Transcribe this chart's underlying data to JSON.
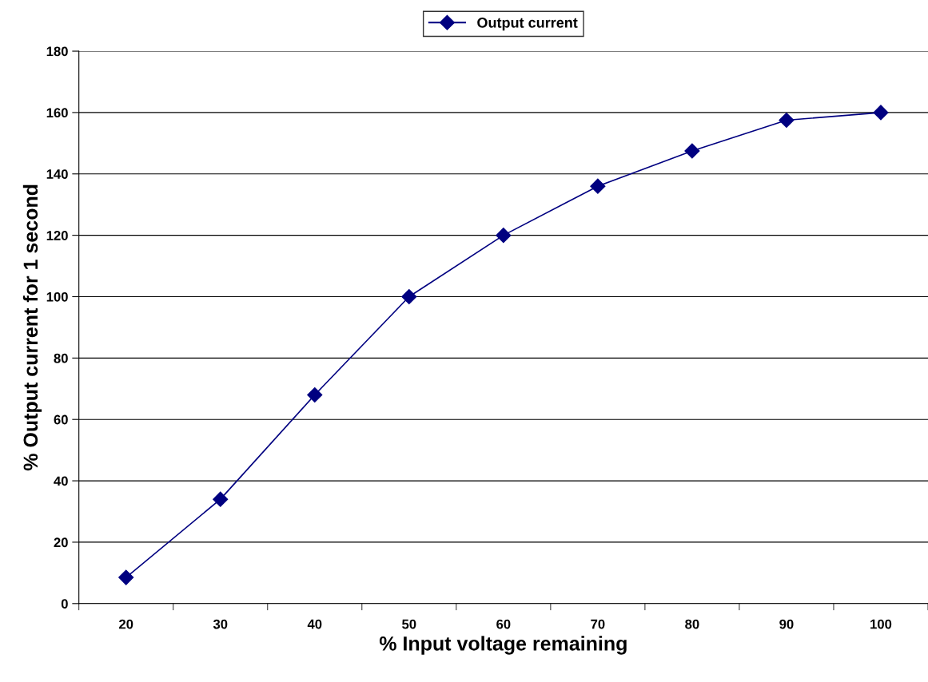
{
  "chart_data": {
    "type": "line",
    "xlabel": "% Input voltage remaining",
    "ylabel": "% Output current for 1 second",
    "categories": [
      "20",
      "30",
      "40",
      "50",
      "60",
      "70",
      "80",
      "90",
      "100"
    ],
    "series": [
      {
        "name": "Output current",
        "color": "#000080",
        "values": [
          8.5,
          34,
          68,
          100,
          120,
          136,
          147.5,
          157.5,
          160
        ]
      }
    ],
    "ylim": [
      0,
      180
    ],
    "yticks": [
      0,
      20,
      40,
      60,
      80,
      100,
      120,
      140,
      160,
      180
    ],
    "grid": "y",
    "legend": "top",
    "marker": "diamond",
    "line_style": "solid"
  }
}
